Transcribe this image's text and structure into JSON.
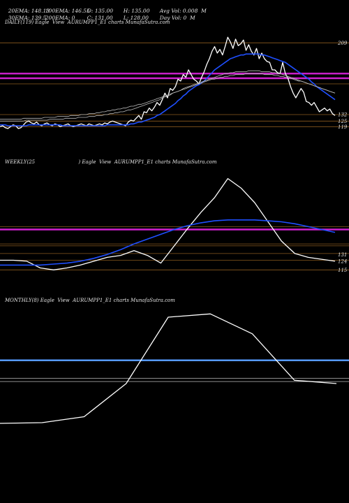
{
  "header": {
    "ema20": "20EMA: 148.13",
    "ema100": "100EMA: 146.55",
    "open": "O: 135.00",
    "high": "H: 135.00",
    "avg_vol": "Avg Vol: 0.008  M",
    "ema30": "30EMA: 139.5",
    "ema200": "200EMA: 0",
    "close": "C: 131.00",
    "low": "L: 128.00",
    "day_vol": "Day Vol: 0  M"
  },
  "panels": {
    "daily_title": "DAILY(119) Eagle  View  AURUMPP1_E1 charts MunafaSutra.com",
    "weekly_title": "WEEKLY(25                            ) Eagle  View  AURUMPP1_E1 charts MunafaSutra.com",
    "monthly_title": "MONTHLY(8) Eagle  View  AURUMPP1_E1 charts MunafaSutra.com"
  },
  "colors": {
    "price": "#ffffff",
    "ema_blue": "#1f4fff",
    "magenta": "#d020d0",
    "gridline": "#8a5a1e",
    "ema_gray": "#bbbbbb",
    "monthly_ema": "#5599ff"
  },
  "chart_data": [
    {
      "type": "line",
      "name": "daily",
      "y_tick_labels": [
        "209",
        "132",
        "125",
        "119"
      ],
      "series": [
        {
          "role": "price",
          "values": [
            119,
            120,
            118,
            117,
            119,
            121,
            120,
            117,
            118,
            121,
            124,
            125,
            123,
            122,
            124,
            121,
            120,
            122,
            123,
            121,
            120,
            122,
            121,
            119,
            120,
            121,
            122,
            120,
            119,
            120,
            121,
            122,
            121,
            120,
            122,
            121,
            120,
            121,
            122,
            121,
            123,
            122,
            124,
            125,
            124,
            123,
            122,
            121,
            120,
            124,
            126,
            125,
            128,
            131,
            127,
            135,
            134,
            139,
            136,
            140,
            145,
            142,
            148,
            155,
            150,
            160,
            158,
            162,
            170,
            168,
            175,
            172,
            180,
            175,
            170,
            168,
            165,
            172,
            178,
            186,
            192,
            200,
            205,
            198,
            202,
            196,
            205,
            215,
            210,
            203,
            213,
            206,
            208,
            212,
            201,
            207,
            200,
            196,
            203,
            192,
            198,
            192,
            189,
            188,
            180,
            180,
            177,
            176,
            188,
            176,
            171,
            162,
            155,
            150,
            155,
            160,
            156,
            146,
            145,
            142,
            145,
            140,
            135,
            137,
            139,
            136,
            138,
            133,
            131
          ]
        },
        {
          "role": "ema_blue",
          "values": [
            121,
            121,
            121,
            120,
            120,
            120,
            120,
            120,
            120,
            120,
            120,
            121,
            121,
            121,
            121,
            121,
            121,
            121,
            121,
            121,
            121,
            121,
            121,
            121,
            120,
            120,
            120,
            120,
            120,
            120,
            120,
            120,
            120,
            120,
            120,
            120,
            120,
            120,
            120,
            120,
            120,
            121,
            121,
            121,
            121,
            121,
            121,
            121,
            121,
            121,
            122,
            122,
            123,
            124,
            124,
            125,
            126,
            127,
            128,
            129,
            131,
            132,
            134,
            136,
            138,
            140,
            142,
            144,
            147,
            149,
            152,
            154,
            157,
            159,
            161,
            163,
            164,
            166,
            168,
            171,
            174,
            177,
            180,
            182,
            184,
            186,
            188,
            190,
            192,
            193,
            194,
            195,
            196,
            196,
            197,
            197,
            197,
            197,
            197,
            197,
            196,
            196,
            195,
            194,
            193,
            192,
            191,
            190,
            189,
            188,
            186,
            184,
            182,
            180,
            178,
            176,
            174,
            172,
            170,
            167,
            165,
            162,
            160,
            158,
            156,
            154,
            152,
            150,
            148
          ]
        },
        {
          "role": "ema_gray",
          "values": [
            125,
            125,
            125,
            125,
            125,
            125,
            125,
            125,
            125,
            125,
            126,
            126,
            126,
            126,
            126,
            126,
            126,
            126,
            126,
            127,
            127,
            127,
            127,
            127,
            127,
            128,
            128,
            128,
            128,
            128,
            129,
            129,
            129,
            129,
            130,
            130,
            130,
            131,
            131,
            131,
            132,
            132,
            133,
            133,
            134,
            134,
            135,
            135,
            136,
            137,
            137,
            138,
            139,
            140,
            141,
            142,
            143,
            144,
            145,
            146,
            147,
            148,
            150,
            151,
            152,
            153,
            155,
            156,
            157,
            158,
            160,
            161,
            162,
            163,
            164,
            165,
            166,
            167,
            168,
            169,
            170,
            171,
            172,
            173,
            174,
            175,
            176,
            176,
            177,
            177,
            178,
            178,
            178,
            178,
            178,
            179,
            179,
            179,
            179,
            179,
            178,
            178,
            178,
            178,
            177,
            177,
            176,
            176,
            175,
            174,
            173,
            172,
            171,
            170,
            169,
            168,
            167,
            166,
            165,
            164,
            163,
            162,
            161,
            160,
            159,
            158,
            157,
            156,
            155
          ]
        },
        {
          "role": "ema_gray2",
          "values": [
            127,
            127,
            127,
            127,
            127,
            127,
            127,
            127,
            127,
            128,
            128,
            128,
            128,
            128,
            128,
            128,
            128,
            129,
            129,
            129,
            129,
            129,
            130,
            130,
            130,
            130,
            130,
            131,
            131,
            131,
            131,
            132,
            132,
            132,
            133,
            133,
            133,
            134,
            134,
            135,
            135,
            136,
            136,
            137,
            137,
            138,
            138,
            139,
            139,
            140,
            141,
            141,
            142,
            143,
            143,
            144,
            145,
            146,
            147,
            148,
            149,
            150,
            151,
            152,
            153,
            154,
            155,
            156,
            157,
            158,
            159,
            160,
            161,
            162,
            163,
            164,
            165,
            166,
            167,
            168,
            169,
            170,
            170,
            171,
            172,
            172,
            173,
            173,
            174,
            174,
            175,
            175,
            175,
            175,
            176,
            176,
            176,
            176,
            176,
            176,
            176,
            175,
            175,
            175,
            175,
            174,
            174,
            173,
            173,
            172,
            172,
            171,
            170,
            169,
            168,
            168,
            167,
            166,
            165,
            164,
            163,
            162,
            161,
            160,
            159,
            158,
            157,
            156,
            155
          ]
        }
      ],
      "hlines": [
        209,
        176,
        171,
        165,
        132,
        125,
        119
      ]
    },
    {
      "type": "line",
      "name": "weekly",
      "y_tick_labels": [
        "131",
        "124",
        "115"
      ],
      "series": [
        {
          "role": "price",
          "values": [
            125,
            125,
            124,
            117,
            115,
            117,
            120,
            124,
            128,
            130,
            135,
            130,
            122,
            140,
            158,
            175,
            190,
            210,
            200,
            185,
            165,
            145,
            132,
            128,
            126,
            124
          ]
        },
        {
          "role": "ema_blue",
          "values": [
            120,
            120,
            120,
            120,
            121,
            122,
            124,
            127,
            131,
            136,
            142,
            147,
            152,
            157,
            161,
            164,
            166,
            167,
            167,
            167,
            166,
            165,
            163,
            160,
            157,
            154
          ]
        }
      ],
      "hlines": [
        160,
        157,
        142,
        140,
        132,
        125,
        115
      ]
    },
    {
      "type": "line",
      "name": "monthly",
      "series": [
        {
          "role": "price",
          "values": [
            120,
            121,
            130,
            180,
            280,
            285,
            255,
            185,
            180
          ]
        }
      ],
      "hlines": [
        215,
        188,
        183
      ]
    }
  ]
}
